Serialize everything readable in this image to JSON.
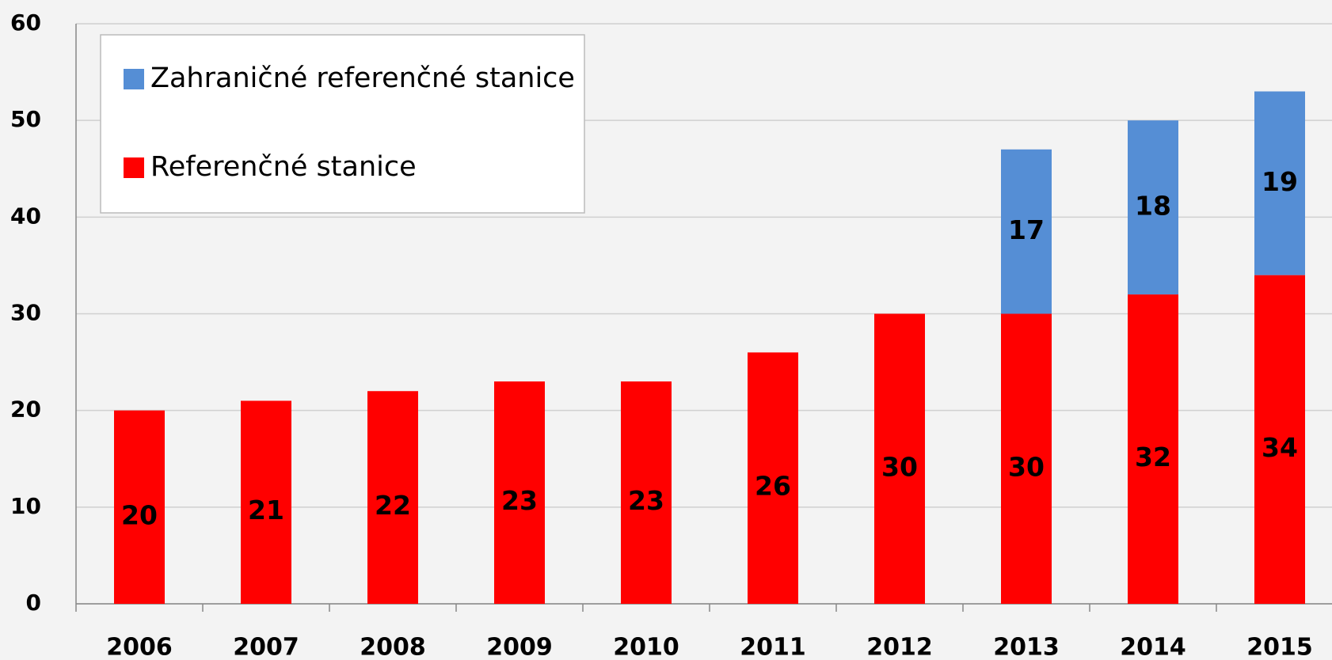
{
  "chart_data": {
    "type": "stacked_bar",
    "categories": [
      "2006",
      "2007",
      "2008",
      "2009",
      "2010",
      "2011",
      "2012",
      "2013",
      "2014",
      "2015"
    ],
    "series": [
      {
        "name": "Referenčné stanice",
        "color": "#ff0000",
        "values": [
          20,
          21,
          22,
          23,
          23,
          26,
          30,
          30,
          32,
          34
        ]
      },
      {
        "name": "Zahraničné referenčné stanice",
        "color": "#558ed5",
        "values": [
          null,
          null,
          null,
          null,
          null,
          null,
          null,
          17,
          18,
          19
        ]
      }
    ],
    "ylim": [
      0,
      60
    ],
    "yticks": [
      0,
      10,
      20,
      30,
      40,
      50,
      60
    ],
    "grid": true,
    "legend": "top-left"
  }
}
